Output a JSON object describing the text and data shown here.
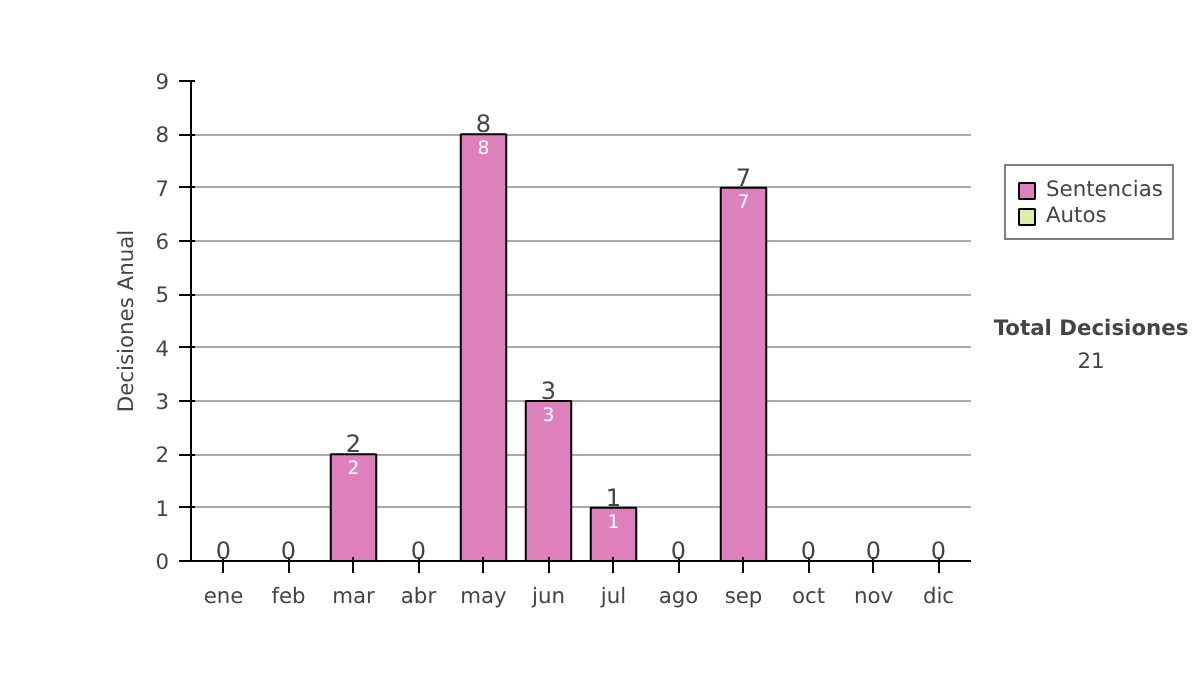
{
  "chart_data": {
    "type": "bar",
    "stacked": true,
    "ylabel": "Decisiones Anual",
    "categories": [
      "ene",
      "feb",
      "mar",
      "abr",
      "may",
      "jun",
      "jul",
      "ago",
      "sep",
      "oct",
      "nov",
      "dic"
    ],
    "series": [
      {
        "name": "Sentencias",
        "color": "#dd80bb",
        "values": [
          0,
          0,
          2,
          0,
          8,
          3,
          1,
          0,
          7,
          0,
          0,
          0
        ],
        "value_labels": [
          null,
          null,
          "2",
          null,
          "8",
          "3",
          "1",
          null,
          "7",
          null,
          null,
          null
        ]
      },
      {
        "name": "Autos",
        "color": "#ddeeaa",
        "values": [
          0,
          0,
          0,
          0,
          0,
          0,
          0,
          0,
          0,
          0,
          0,
          0
        ]
      }
    ],
    "totals": [
      "0",
      "0",
      "2",
      "0",
      "8",
      "3",
      "1",
      "0",
      "7",
      "0",
      "0",
      "0"
    ],
    "ylim": [
      0,
      9
    ],
    "yticks": [
      0,
      1,
      2,
      3,
      4,
      5,
      6,
      7,
      8,
      9
    ],
    "grid": "y",
    "legend": "right",
    "annotations": [
      "Total Decisiones",
      "21"
    ]
  }
}
